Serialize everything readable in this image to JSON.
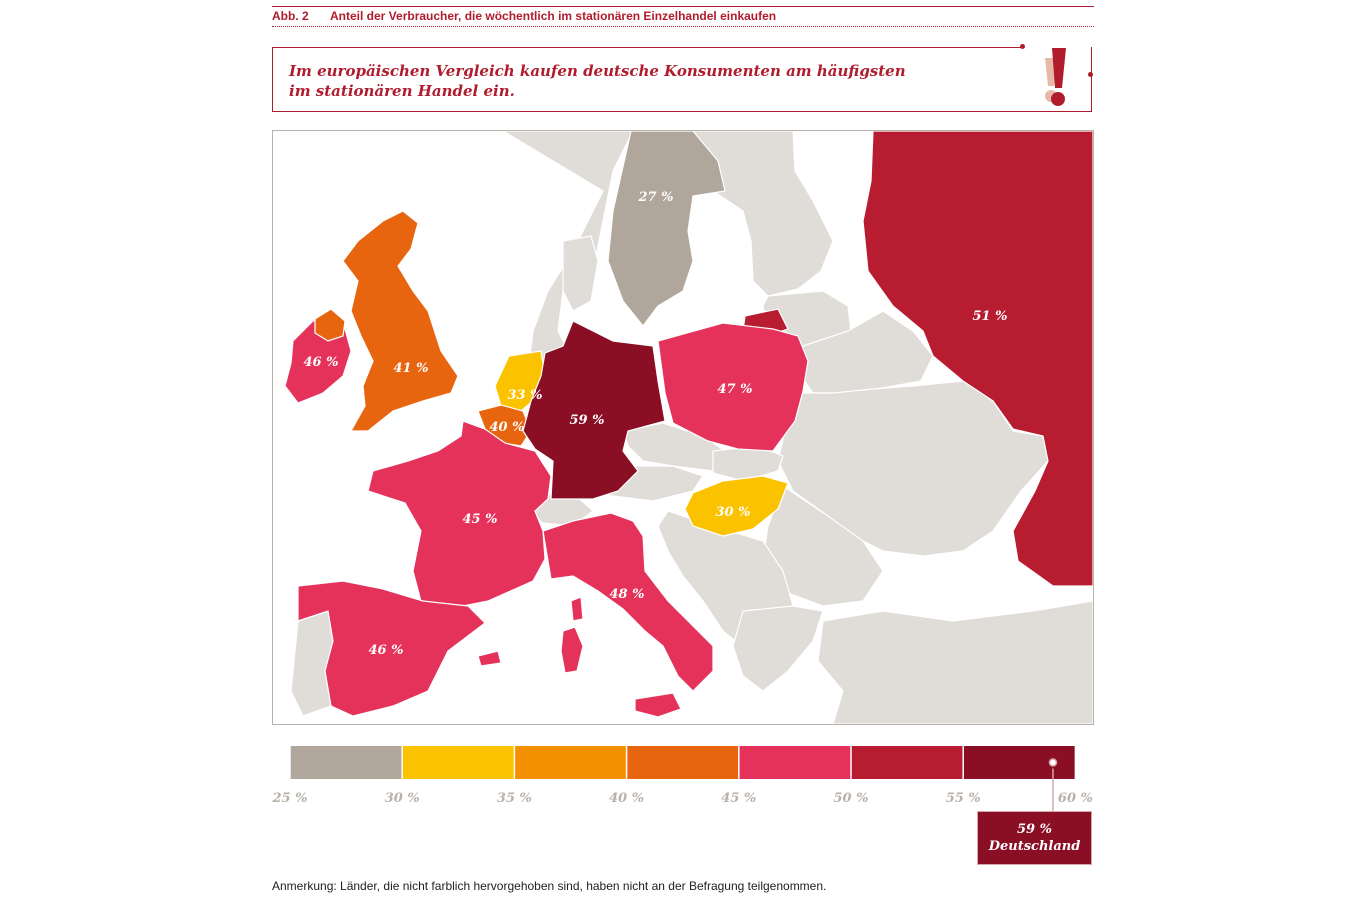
{
  "figure": {
    "number": "Abb. 2",
    "title": "Anteil der Verbraucher, die wöchentlich im stationären Einzelhandel einkaufen"
  },
  "callout": {
    "text": "Im europäischen Vergleich kaufen deutsche Konsumenten am häufigsten im stationären Handel ein.",
    "icon": "exclamation-icon"
  },
  "map": {
    "countries": [
      {
        "id": "sweden",
        "value": "27 %",
        "color": "#b1a69c"
      },
      {
        "id": "russia",
        "value": "51 %",
        "color": "#b81c30"
      },
      {
        "id": "kaliningrad",
        "value": "",
        "color": "#b81c30"
      },
      {
        "id": "uk",
        "value": "41 %",
        "color": "#e8650f"
      },
      {
        "id": "ireland",
        "value": "46 %",
        "color": "#e4325a"
      },
      {
        "id": "northern-ireland",
        "value": "",
        "color": "#e8650f"
      },
      {
        "id": "netherlands",
        "value": "33 %",
        "color": "#fbc200"
      },
      {
        "id": "belgium",
        "value": "40 %",
        "color": "#e8650f"
      },
      {
        "id": "germany",
        "value": "59 %",
        "color": "#8a0e24"
      },
      {
        "id": "poland",
        "value": "47 %",
        "color": "#e4325a"
      },
      {
        "id": "france",
        "value": "45 %",
        "color": "#e4325a"
      },
      {
        "id": "hungary",
        "value": "30 %",
        "color": "#fbc200"
      },
      {
        "id": "italy",
        "value": "48 %",
        "color": "#e4325a"
      },
      {
        "id": "spain",
        "value": "46 %",
        "color": "#e4325a"
      }
    ],
    "no_data_color": "#e0dcd8"
  },
  "legend": {
    "ticks": [
      "25 %",
      "30 %",
      "35 %",
      "40 %",
      "45 %",
      "50 %",
      "55 %",
      "60 %"
    ],
    "colors": [
      "#b1a69c",
      "#fbc200",
      "#f39100",
      "#e8650f",
      "#e4325a",
      "#b81c30",
      "#8a0e24"
    ],
    "marker": {
      "value": "59 %",
      "country": "Deutschland",
      "position": 59
    }
  },
  "note": "Anmerkung: Länder, die nicht farblich hervorgehoben sind, haben nicht an der Befragung teilgenommen."
}
